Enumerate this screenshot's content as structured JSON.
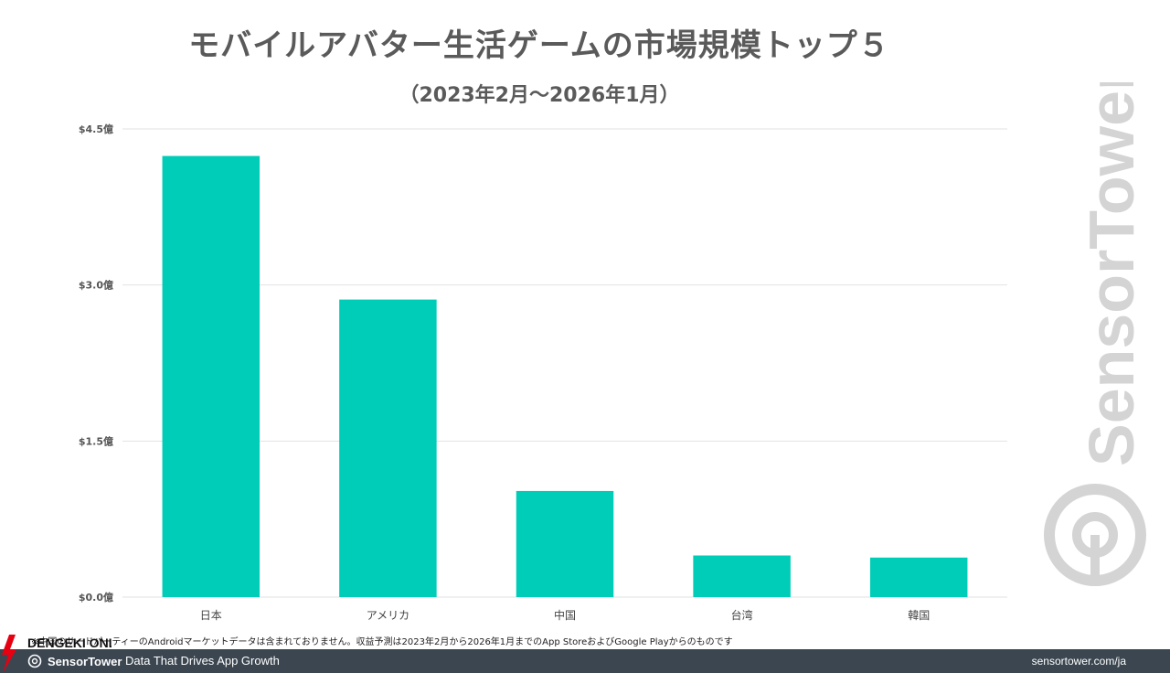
{
  "title": "モバイルアバター生活ゲームの市場規模トップ５",
  "subtitle": "（2023年2月～2026年1月）",
  "chart_data": {
    "type": "bar",
    "categories": [
      "日本",
      "アメリカ",
      "中国",
      "台湾",
      "韓国"
    ],
    "values": [
      4.24,
      2.86,
      1.02,
      0.4,
      0.38
    ],
    "unit": "億",
    "ylim": [
      0,
      4.5
    ],
    "yticks": [
      {
        "value": 0,
        "label": "$0.0億"
      },
      {
        "value": 1.5,
        "label": "$1.5億"
      },
      {
        "value": 3.0,
        "label": "$3.0億"
      },
      {
        "value": 4.5,
        "label": "$4.5億"
      }
    ],
    "grid": true,
    "bar_color": "#00cdb8"
  },
  "footnote": "※中国のサードパーティーのAndroidマーケットデータは含まれておりません。収益予測は2023年2月から2026年1月までのApp StoreおよびGoogle Playからのものです",
  "footer": {
    "brand": "SensorTower",
    "tagline": "Data That Drives App Growth",
    "url": "sensortower.com/ja"
  },
  "watermark": "SensorTower",
  "dengeki_logo": "DENGEKI ONLINE",
  "colors": {
    "footer_bg": "#3b4650",
    "title": "#5a5a5a",
    "watermark": "#d4d4d4"
  }
}
